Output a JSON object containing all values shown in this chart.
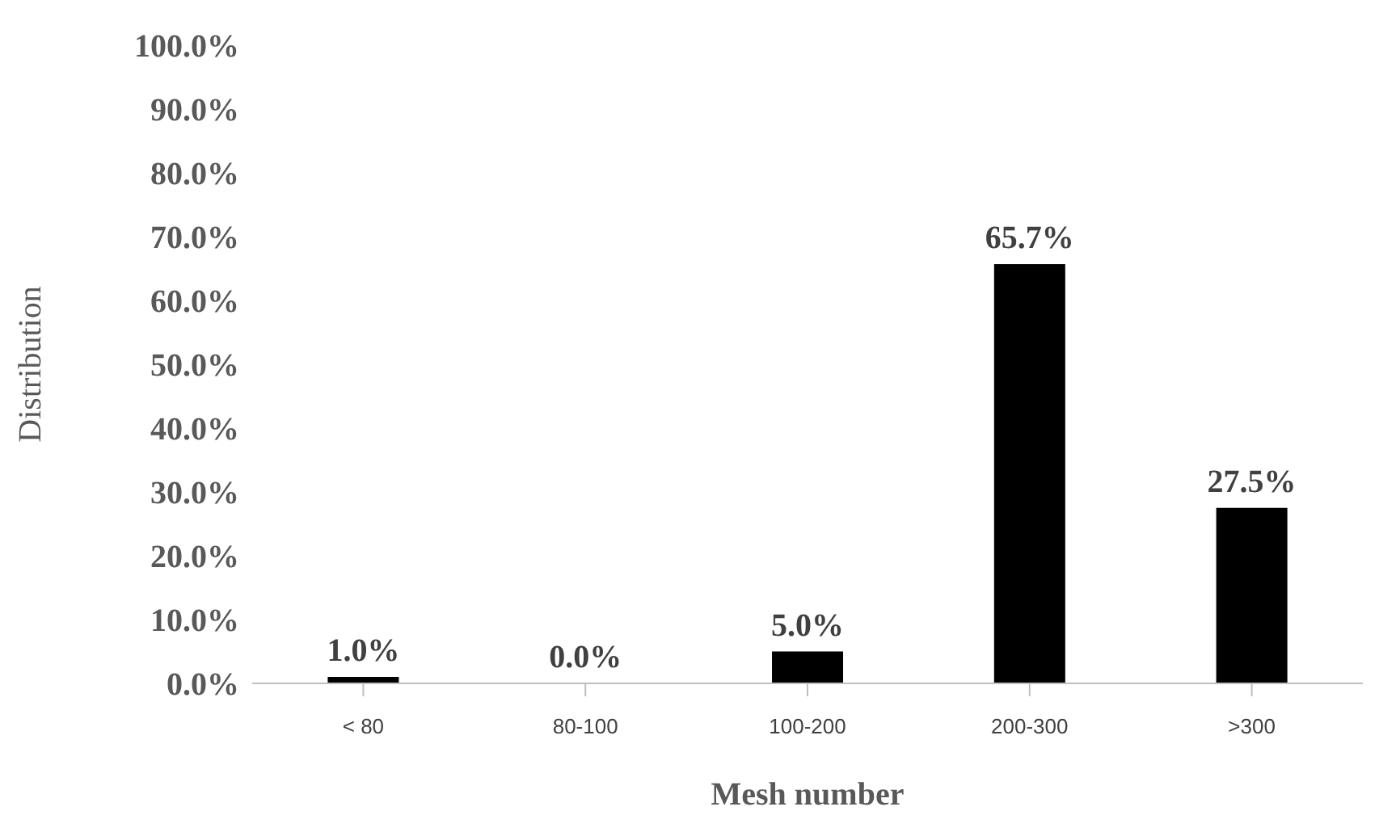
{
  "chart_data": {
    "type": "bar",
    "xlabel": "Mesh number",
    "ylabel": "Distribution",
    "categories": [
      "< 80",
      "80-100",
      "100-200",
      "200-300",
      ">300"
    ],
    "values": [
      1.0,
      0.0,
      5.0,
      65.7,
      27.5
    ],
    "value_labels": [
      "1.0%",
      "0.0%",
      "5.0%",
      "65.7%",
      "27.5%"
    ],
    "color": "#000000",
    "ylim": [
      0,
      100
    ],
    "yticks": [
      {
        "value": 0,
        "label": "0.0%"
      },
      {
        "value": 10,
        "label": "10.0%"
      },
      {
        "value": 20,
        "label": "20.0%"
      },
      {
        "value": 30,
        "label": "30.0%"
      },
      {
        "value": 40,
        "label": "40.0%"
      },
      {
        "value": 50,
        "label": "50.0%"
      },
      {
        "value": 60,
        "label": "60.0%"
      },
      {
        "value": 70,
        "label": "70.0%"
      },
      {
        "value": 80,
        "label": "80.0%"
      },
      {
        "value": 90,
        "label": "90.0%"
      },
      {
        "value": 100,
        "label": "100.0%"
      }
    ],
    "grid": false
  }
}
